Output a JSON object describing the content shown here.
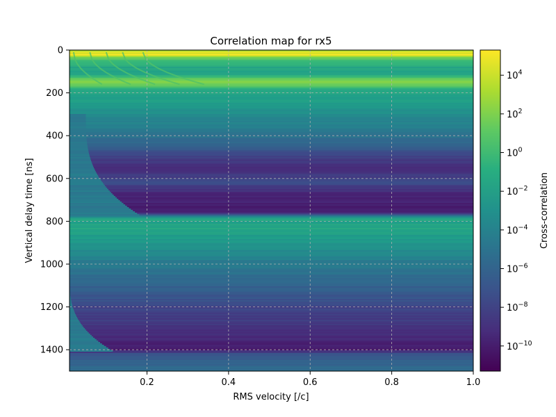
{
  "chart_data": {
    "type": "heatmap",
    "title": "Correlation map for rx5",
    "xlabel": "RMS velocity [/c]",
    "ylabel": "Vertical delay time [ns]",
    "xlim": [
      0.01,
      1.0
    ],
    "ylim": [
      1500,
      0
    ],
    "y_inverted": true,
    "grid": true,
    "grid_style": "dashed gray",
    "colormap": "viridis",
    "x_ticks": [
      {
        "value": 0.2,
        "label": "0.2"
      },
      {
        "value": 0.4,
        "label": "0.4"
      },
      {
        "value": 0.6,
        "label": "0.6"
      },
      {
        "value": 0.8,
        "label": "0.8"
      },
      {
        "value": 1.0,
        "label": "1.0"
      }
    ],
    "y_ticks": [
      {
        "value": 0,
        "label": "0"
      },
      {
        "value": 200,
        "label": "200"
      },
      {
        "value": 400,
        "label": "400"
      },
      {
        "value": 600,
        "label": "600"
      },
      {
        "value": 800,
        "label": "800"
      },
      {
        "value": 1000,
        "label": "1000"
      },
      {
        "value": 1200,
        "label": "1200"
      },
      {
        "value": 1400,
        "label": "1400"
      }
    ],
    "colorbar": {
      "label": "Cross-correlation",
      "scale": "log",
      "range": [
        5e-12,
        200000.0
      ],
      "ticks": [
        {
          "value": 10000.0,
          "base": "10",
          "exp": "4"
        },
        {
          "value": 100.0,
          "base": "10",
          "exp": "2"
        },
        {
          "value": 1.0,
          "base": "10",
          "exp": "0"
        },
        {
          "value": 0.01,
          "base": "10",
          "exp": "−2"
        },
        {
          "value": 0.0001,
          "base": "10",
          "exp": "−4"
        },
        {
          "value": 1e-06,
          "base": "10",
          "exp": "−6"
        },
        {
          "value": 1e-08,
          "base": "10",
          "exp": "−8"
        },
        {
          "value": 1e-10,
          "base": "10",
          "exp": "−10"
        }
      ]
    },
    "delay_profile": [
      {
        "t": 0,
        "log10": 3.0
      },
      {
        "t": 8,
        "log10": 4.2
      },
      {
        "t": 25,
        "log10": 5.2
      },
      {
        "t": 32,
        "log10": 2.0
      },
      {
        "t": 50,
        "log10": 0.2
      },
      {
        "t": 80,
        "log10": -1.5
      },
      {
        "t": 110,
        "log10": -2.0
      },
      {
        "t": 135,
        "log10": 1.2
      },
      {
        "t": 150,
        "log10": 2.3
      },
      {
        "t": 165,
        "log10": 1.5
      },
      {
        "t": 190,
        "log10": -1.5
      },
      {
        "t": 240,
        "log10": -2.2
      },
      {
        "t": 300,
        "log10": -3.2
      },
      {
        "t": 380,
        "log10": -4.5
      },
      {
        "t": 450,
        "log10": -6.0
      },
      {
        "t": 500,
        "log10": -8.0
      },
      {
        "t": 560,
        "log10": -9.2
      },
      {
        "t": 620,
        "log10": -7.5
      },
      {
        "t": 680,
        "log10": -9.8
      },
      {
        "t": 760,
        "log10": -9.8
      },
      {
        "t": 785,
        "log10": -1.8
      },
      {
        "t": 830,
        "log10": -1.5
      },
      {
        "t": 900,
        "log10": -2.6
      },
      {
        "t": 1000,
        "log10": -4.5
      },
      {
        "t": 1100,
        "log10": -6.0
      },
      {
        "t": 1200,
        "log10": -7.8
      },
      {
        "t": 1280,
        "log10": -8.6
      },
      {
        "t": 1340,
        "log10": -9.4
      },
      {
        "t": 1400,
        "log10": -10.2
      },
      {
        "t": 1420,
        "log10": -7.0
      },
      {
        "t": 1460,
        "log10": -6.0
      },
      {
        "t": 1500,
        "log10": -5.5
      }
    ],
    "curved_boundaries": [
      {
        "t_start": 300,
        "t_end": 780,
        "v_edge": 0.05,
        "v_end": 0.19
      },
      {
        "t_start": 1050,
        "t_end": 1410,
        "v_edge": 0.01,
        "v_end": 0.12
      }
    ]
  }
}
